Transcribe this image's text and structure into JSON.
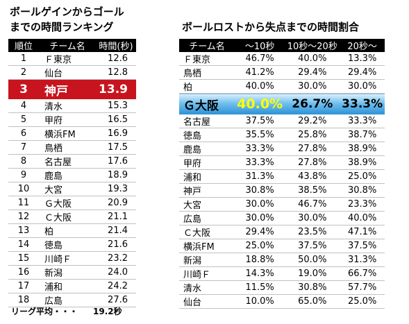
{
  "left": {
    "title_line1": "ボールゲインからゴール",
    "title_line2": "までの時間ランキング",
    "headers": [
      "順位",
      "チーム名",
      "時間(秒)"
    ],
    "rows": [
      {
        "rank": "1",
        "team": "Ｆ東京",
        "time": "12.6"
      },
      {
        "rank": "2",
        "team": "仙台",
        "time": "12.8"
      },
      {
        "rank": "3",
        "team": "神戸",
        "time": "13.9"
      },
      {
        "rank": "4",
        "team": "清水",
        "time": "15.3"
      },
      {
        "rank": "5",
        "team": "甲府",
        "time": "16.5"
      },
      {
        "rank": "6",
        "team": "横浜FM",
        "time": "16.9"
      },
      {
        "rank": "7",
        "team": "鳥栖",
        "time": "17.5"
      },
      {
        "rank": "8",
        "team": "名古屋",
        "time": "17.6"
      },
      {
        "rank": "9",
        "team": "鹿島",
        "time": "18.9"
      },
      {
        "rank": "10",
        "team": "大宮",
        "time": "19.3"
      },
      {
        "rank": "11",
        "team": "Ｇ大阪",
        "time": "20.9"
      },
      {
        "rank": "12",
        "team": "Ｃ大阪",
        "time": "21.1"
      },
      {
        "rank": "13",
        "team": "柏",
        "time": "21.4"
      },
      {
        "rank": "14",
        "team": "徳島",
        "time": "21.6"
      },
      {
        "rank": "15",
        "team": "川崎Ｆ",
        "time": "23.2"
      },
      {
        "rank": "16",
        "team": "新潟",
        "time": "24.0"
      },
      {
        "rank": "17",
        "team": "浦和",
        "time": "24.2"
      },
      {
        "rank": "18",
        "team": "広島",
        "time": "27.6"
      }
    ],
    "league_avg_label": "リーグ平均・・・",
    "league_avg_value": "19.2秒"
  },
  "right": {
    "title": "ボールロストから失点までの時間割合",
    "headers": [
      "チーム名",
      "～10秒",
      "10秒～20秒",
      "20秒～"
    ],
    "rows": [
      {
        "team": "Ｆ東京",
        "a": "46.7%",
        "b": "40.0%",
        "c": "13.3%"
      },
      {
        "team": "鳥栖",
        "a": "41.2%",
        "b": "29.4%",
        "c": "29.4%"
      },
      {
        "team": "柏",
        "a": "40.0%",
        "b": "30.0%",
        "c": "30.0%"
      },
      {
        "team": "Ｇ大阪",
        "a": "40.0%",
        "b": "26.7%",
        "c": "33.3%"
      },
      {
        "team": "名古屋",
        "a": "37.5%",
        "b": "29.2%",
        "c": "33.3%"
      },
      {
        "team": "徳島",
        "a": "35.5%",
        "b": "25.8%",
        "c": "38.7%"
      },
      {
        "team": "鹿島",
        "a": "33.3%",
        "b": "27.8%",
        "c": "38.9%"
      },
      {
        "team": "甲府",
        "a": "33.3%",
        "b": "27.8%",
        "c": "38.9%"
      },
      {
        "team": "浦和",
        "a": "31.3%",
        "b": "43.8%",
        "c": "25.0%"
      },
      {
        "team": "神戸",
        "a": "30.8%",
        "b": "38.5%",
        "c": "30.8%"
      },
      {
        "team": "大宮",
        "a": "30.0%",
        "b": "46.7%",
        "c": "23.3%"
      },
      {
        "team": "広島",
        "a": "30.0%",
        "b": "30.0%",
        "c": "40.0%"
      },
      {
        "team": "Ｃ大阪",
        "a": "29.4%",
        "b": "23.5%",
        "c": "47.1%"
      },
      {
        "team": "横浜FM",
        "a": "25.0%",
        "b": "37.5%",
        "c": "37.5%"
      },
      {
        "team": "新潟",
        "a": "18.8%",
        "b": "50.0%",
        "c": "31.3%"
      },
      {
        "team": "川崎Ｆ",
        "a": "14.3%",
        "b": "19.0%",
        "c": "66.7%"
      },
      {
        "team": "清水",
        "a": "11.5%",
        "b": "30.8%",
        "c": "57.7%"
      },
      {
        "team": "仙台",
        "a": "10.0%",
        "b": "65.0%",
        "c": "25.0%"
      }
    ]
  },
  "colors": {
    "left_highlight": "#c8141e",
    "right_highlight": "#2c8fd6",
    "accent_yellow": "#ffff00"
  }
}
